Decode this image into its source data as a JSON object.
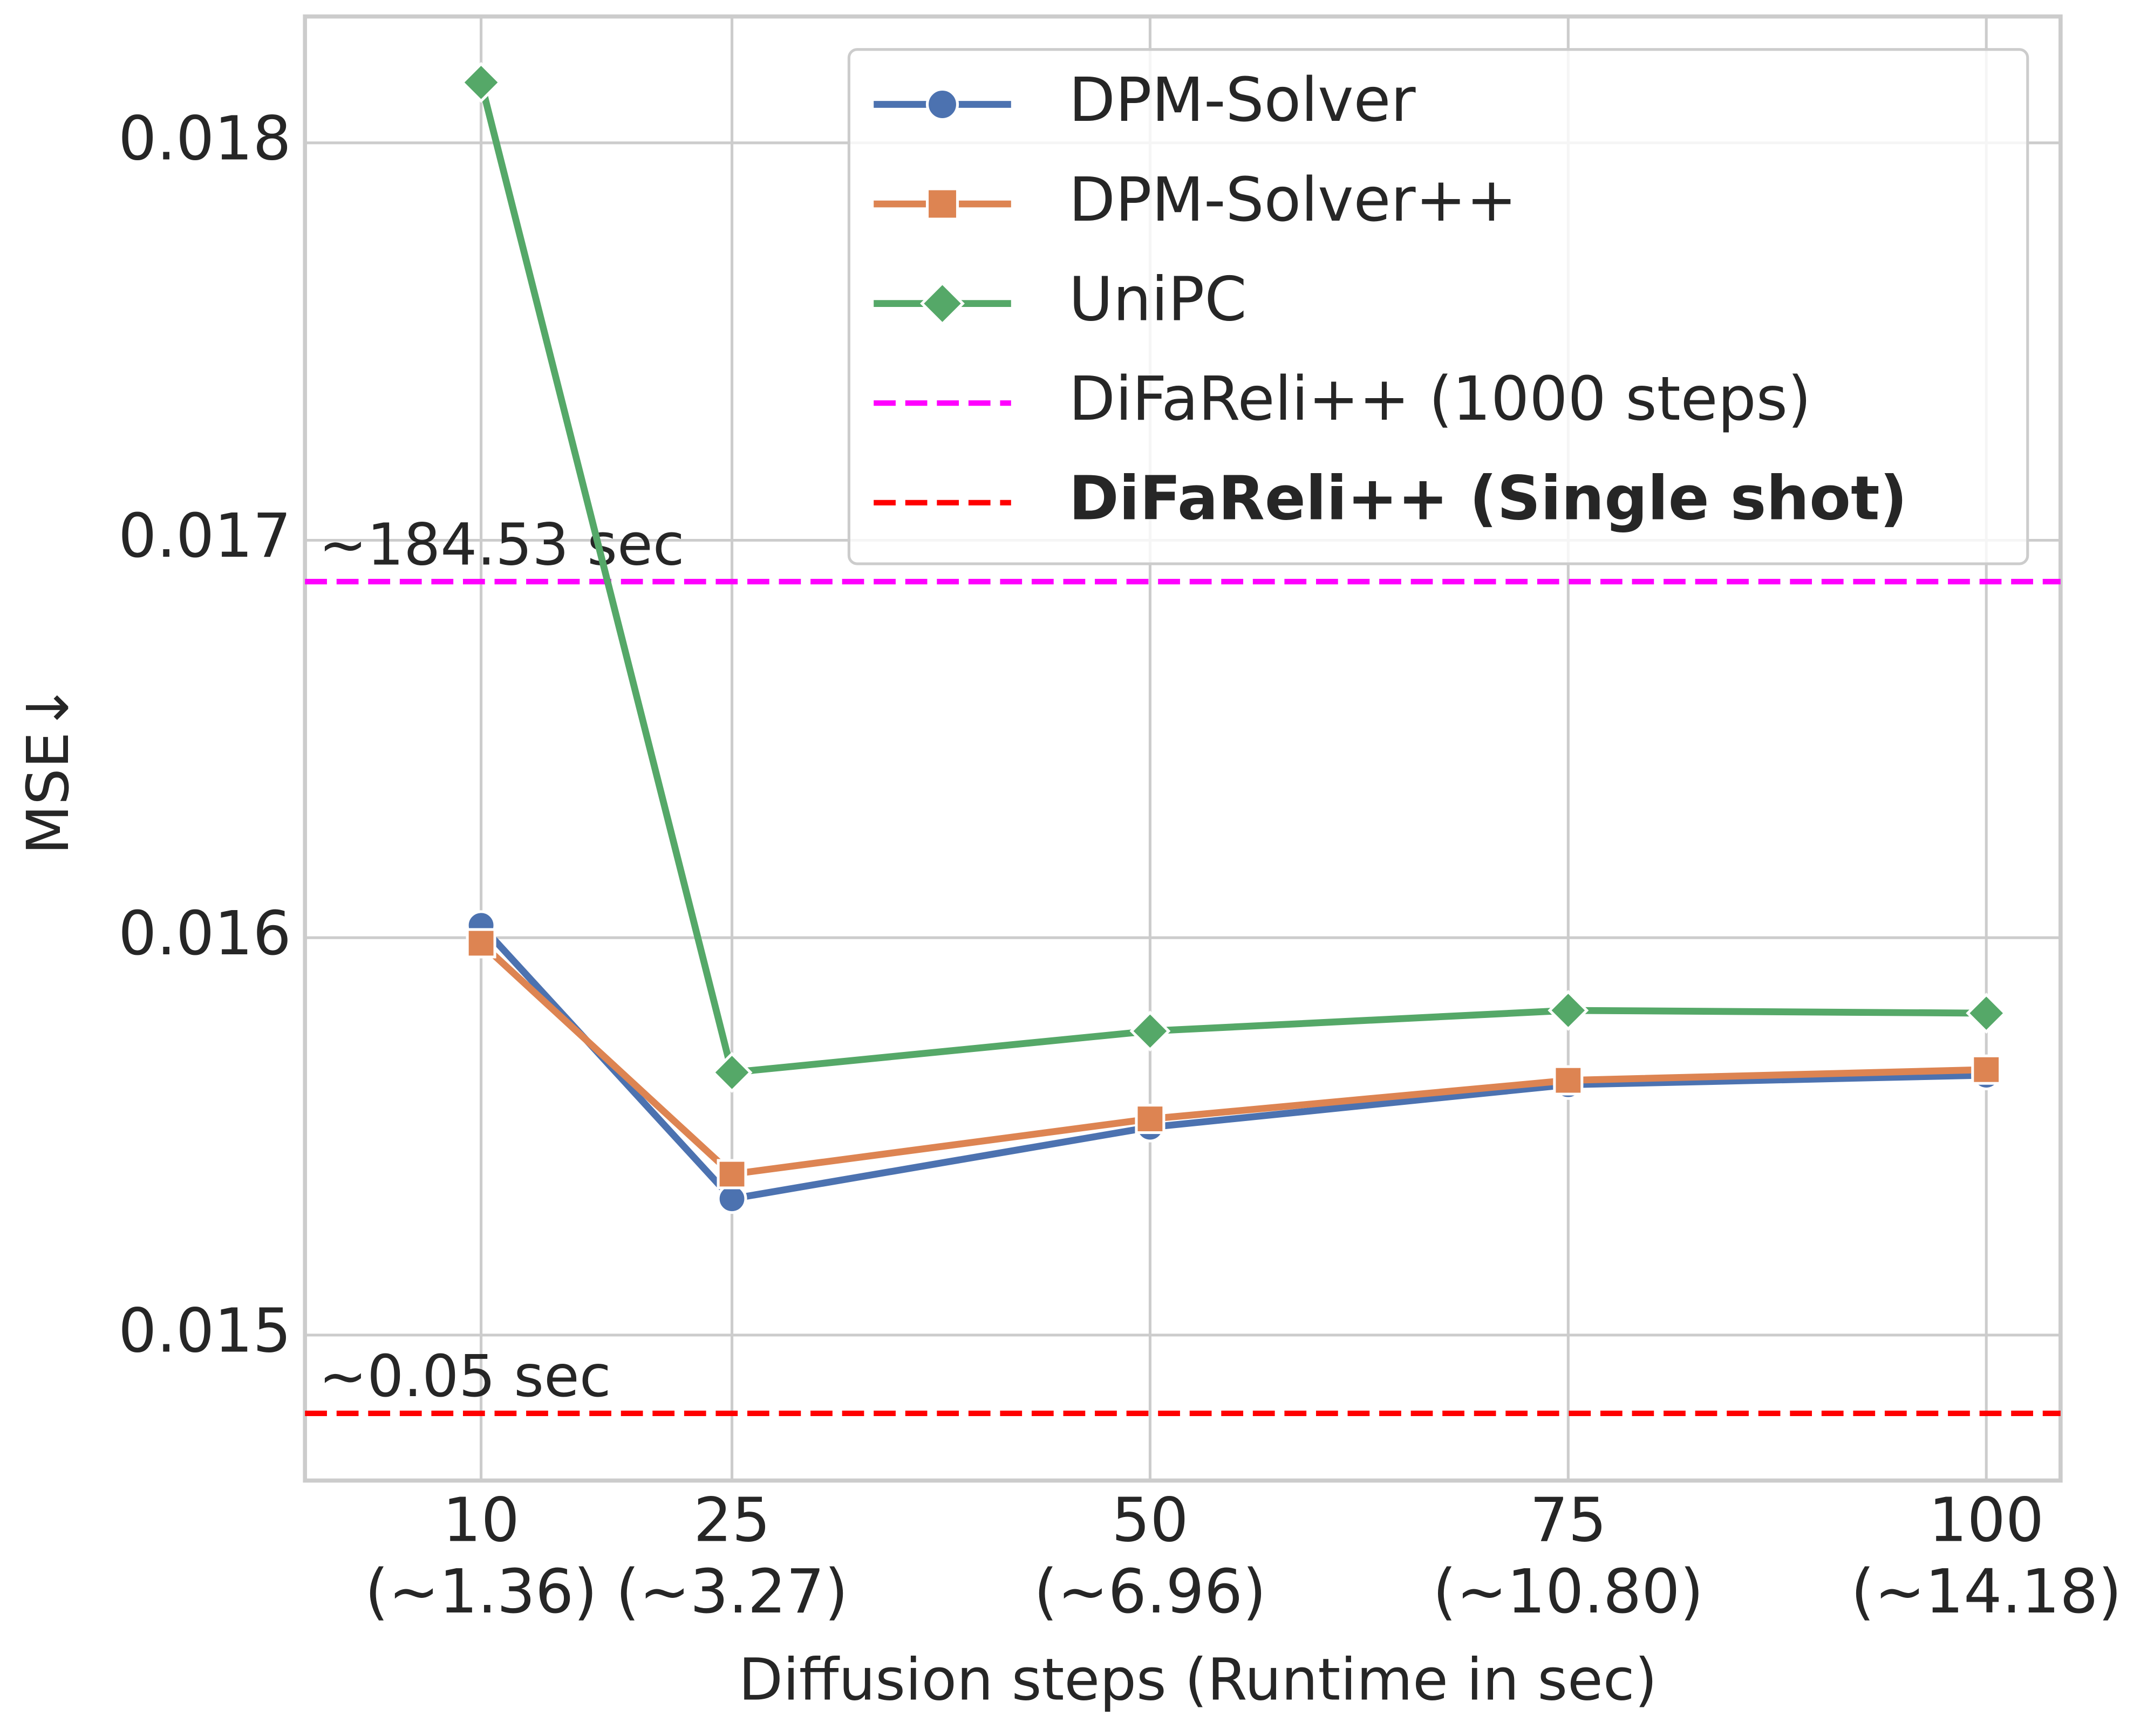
{
  "chart_data": {
    "type": "line",
    "x": [
      10,
      25,
      50,
      75,
      100
    ],
    "xlabel": "Diffusion steps (Runtime in sec)",
    "ylabel": "MSE↓",
    "xlim": [
      -0.53,
      104.44
    ],
    "ylim": [
      0.014634,
      0.018318
    ],
    "xticks": [
      10,
      25,
      50,
      75,
      100
    ],
    "xtick_sublabels": [
      "(~1.36)",
      "(~3.27)",
      "(~6.96)",
      "(~10.80)",
      "(~14.18)"
    ],
    "yticks": [
      0.015,
      0.016,
      0.017,
      0.018
    ],
    "grid": true,
    "legend": "upper right",
    "series": [
      {
        "name": "DPM-Solver",
        "color": "#4c72b0",
        "marker": "circle",
        "values": [
          0.016031,
          0.015343,
          0.015523,
          0.01563,
          0.015654
        ]
      },
      {
        "name": "DPM-Solver++",
        "color": "#dd8452",
        "marker": "square",
        "values": [
          0.015986,
          0.015405,
          0.015544,
          0.015641,
          0.015668
        ]
      },
      {
        "name": "UniPC",
        "color": "#55a868",
        "marker": "diamond",
        "values": [
          0.018152,
          0.015661,
          0.015765,
          0.015817,
          0.01581
        ]
      }
    ],
    "hlines": [
      {
        "name": "DiFaReli++ (1000 steps)",
        "color": "#ff00ff",
        "value": 0.016896,
        "annotation": "~184.53 sec",
        "bold": false
      },
      {
        "name": "DiFaReli++ (Single shot)",
        "color": "#ff0000",
        "value": 0.014803,
        "annotation": "~0.05 sec",
        "bold": true
      }
    ]
  }
}
